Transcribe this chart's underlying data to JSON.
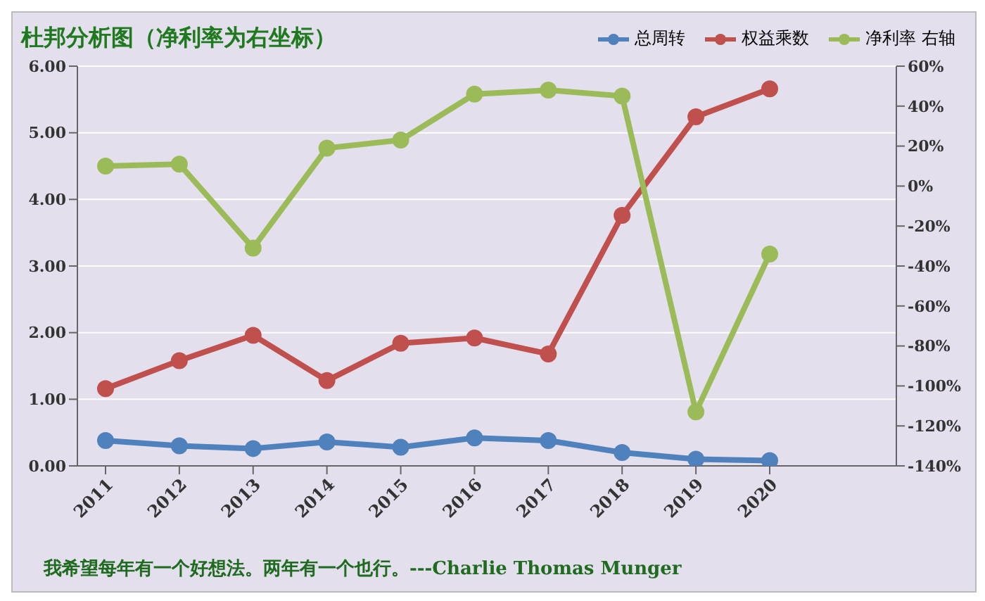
{
  "chart_data": {
    "type": "line",
    "title": "杜邦分析图（净利率为右坐标）",
    "categories": [
      "2011",
      "2012",
      "2013",
      "2014",
      "2015",
      "2016",
      "2017",
      "2018",
      "2019",
      "2020"
    ],
    "series": [
      {
        "name": "总周转",
        "color": "#4f81bd",
        "values": [
          0.38,
          0.3,
          0.26,
          0.36,
          0.28,
          0.42,
          0.38,
          0.2,
          0.1,
          0.08
        ]
      },
      {
        "name": "权益乘数",
        "color": "#c0504d",
        "values": [
          1.16,
          1.58,
          1.96,
          1.28,
          1.84,
          1.92,
          1.68,
          3.76,
          5.24,
          5.66
        ]
      },
      {
        "name": "净利率 右轴",
        "color": "#9bbb59",
        "axis": "y2",
        "values": [
          10,
          11,
          -31,
          19,
          23,
          46,
          48,
          45,
          -113,
          -34
        ]
      }
    ],
    "ylim": [
      0,
      6
    ],
    "yticks": [
      {
        "value": 0,
        "label": "0.00"
      },
      {
        "value": 1,
        "label": "1.00"
      },
      {
        "value": 2,
        "label": "2.00"
      },
      {
        "value": 3,
        "label": "3.00"
      },
      {
        "value": 4,
        "label": "4.00"
      },
      {
        "value": 5,
        "label": "5.00"
      },
      {
        "value": 6,
        "label": "6.00"
      }
    ],
    "y2lim": [
      -140,
      60
    ],
    "y2ticks": [
      {
        "value": -140,
        "label": "-140%"
      },
      {
        "value": -120,
        "label": "-120%"
      },
      {
        "value": -100,
        "label": "-100%"
      },
      {
        "value": -80,
        "label": "-80%"
      },
      {
        "value": -60,
        "label": "-60%"
      },
      {
        "value": -40,
        "label": "-40%"
      },
      {
        "value": -20,
        "label": "-20%"
      },
      {
        "value": 0,
        "label": "0%"
      },
      {
        "value": 20,
        "label": "20%"
      },
      {
        "value": 40,
        "label": "40%"
      },
      {
        "value": 60,
        "label": "60%"
      }
    ],
    "grid": "y",
    "legend": "top right",
    "marker": "circle",
    "annotations": [
      "我希望每年有一个好想法。两年有一个也行。---Charlie Thomas  Munger"
    ]
  }
}
